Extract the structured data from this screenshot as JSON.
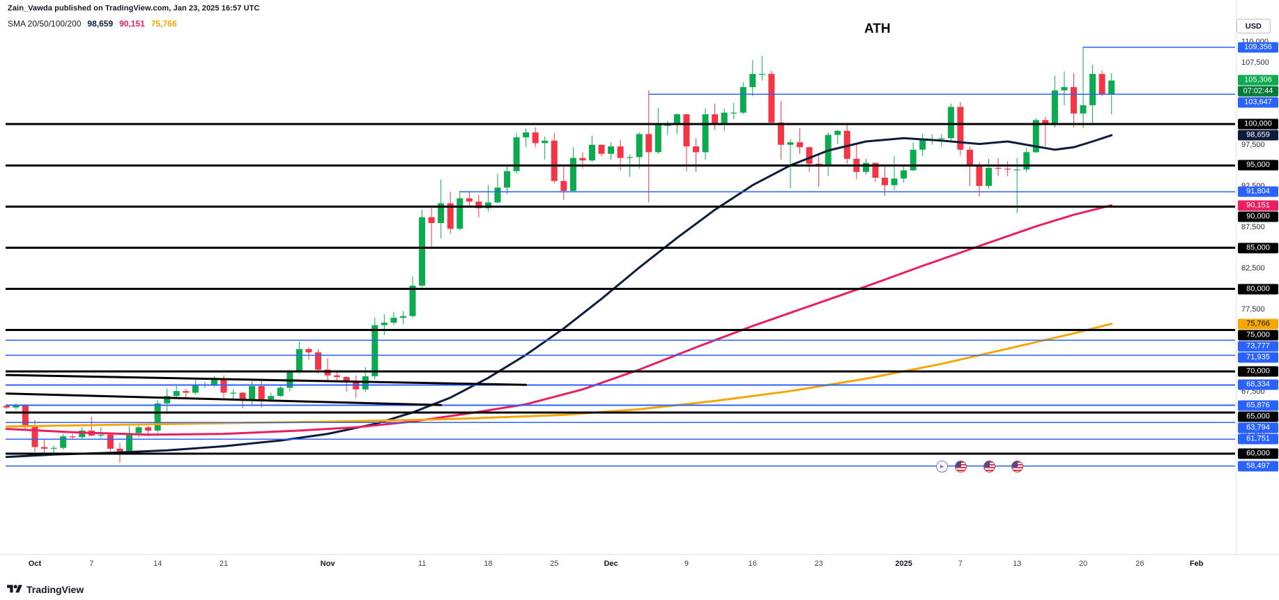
{
  "header": {
    "attribution": "Zain_Vawda published on TradingView.com, Jan 23, 2025 16:57 UTC",
    "legend_label": "SMA 20/50/100/200",
    "legend_values": [
      {
        "text": "98,659",
        "color": "#0d1b3c"
      },
      {
        "text": "90,151",
        "color": "#e91e63"
      },
      {
        "text": "75,766",
        "color": "#f7a600"
      }
    ],
    "currency_button": "USD"
  },
  "annotation_ath": "ATH",
  "footer_brand": "TradingView",
  "colors": {
    "up": "#0cab50",
    "down": "#f23645",
    "level_black": "#000000",
    "level_blue": "#2962ff",
    "badge_black": "#000000",
    "badge_navy": "#0d1b3c",
    "badge_pink": "#e91e63",
    "badge_orange": "#f7a600",
    "badge_current_bg": "#0cab50",
    "badge_countdown_bg": "#077a38",
    "axis_text": "#131722"
  },
  "axis": {
    "x_ticks": [
      {
        "label": "Oct",
        "day": 0,
        "major": true
      },
      {
        "label": "7",
        "day": 6
      },
      {
        "label": "14",
        "day": 13
      },
      {
        "label": "21",
        "day": 20
      },
      {
        "label": "Nov",
        "day": 31,
        "major": true
      },
      {
        "label": "11",
        "day": 41
      },
      {
        "label": "18",
        "day": 48
      },
      {
        "label": "25",
        "day": 55
      },
      {
        "label": "Dec",
        "day": 61,
        "major": true
      },
      {
        "label": "9",
        "day": 69
      },
      {
        "label": "16",
        "day": 76
      },
      {
        "label": "23",
        "day": 83
      },
      {
        "label": "2025",
        "day": 92,
        "major": true
      },
      {
        "label": "7",
        "day": 98
      },
      {
        "label": "13",
        "day": 104
      },
      {
        "label": "20",
        "day": 111
      },
      {
        "label": "26",
        "day": 117
      },
      {
        "label": "Feb",
        "day": 123,
        "major": true
      }
    ],
    "y_ticks": [
      {
        "label": "110,000",
        "price": 110
      },
      {
        "label": "107,500",
        "price": 107.5
      },
      {
        "label": "97,500",
        "price": 97.5
      },
      {
        "label": "92,500",
        "price": 92.5
      },
      {
        "label": "87,500",
        "price": 87.5
      },
      {
        "label": "82,500",
        "price": 82.5
      },
      {
        "label": "77,500",
        "price": 77.5
      },
      {
        "label": "67,500",
        "price": 67.5
      },
      {
        "label": "62,500",
        "price": 62.5
      }
    ],
    "price_badges": [
      {
        "text": "109,356",
        "price": 109.356,
        "style": "blue"
      },
      {
        "text": "105,306",
        "price": 105.306,
        "style": "current"
      },
      {
        "text": "07:02:44",
        "style": "countdown"
      },
      {
        "text": "103,647",
        "price": 103.647,
        "style": "blue"
      },
      {
        "text": "100,000",
        "price": 100,
        "style": "black"
      },
      {
        "text": "98,659",
        "price": 98.659,
        "style": "navy"
      },
      {
        "text": "95,000",
        "price": 95,
        "style": "black"
      },
      {
        "text": "91,804",
        "price": 91.804,
        "style": "blue"
      },
      {
        "text": "90,151",
        "price": 90.151,
        "style": "pink"
      },
      {
        "text": "90,000",
        "price": 90,
        "style": "black"
      },
      {
        "text": "85,000",
        "price": 85,
        "style": "black"
      },
      {
        "text": "80,000",
        "price": 80,
        "style": "black"
      },
      {
        "text": "75,766",
        "price": 75.766,
        "style": "orange"
      },
      {
        "text": "75,000",
        "price": 75,
        "style": "black"
      },
      {
        "text": "73,777",
        "price": 73.777,
        "style": "blue"
      },
      {
        "text": "71,935",
        "price": 71.935,
        "style": "blue"
      },
      {
        "text": "70,000",
        "price": 70,
        "style": "black"
      },
      {
        "text": "68,334",
        "price": 68.334,
        "style": "blue"
      },
      {
        "text": "65,876",
        "price": 65.876,
        "style": "blue"
      },
      {
        "text": "65,000",
        "price": 65,
        "style": "black"
      },
      {
        "text": "63,794",
        "price": 63.794,
        "style": "blue"
      },
      {
        "text": "61,751",
        "price": 61.751,
        "style": "blue"
      },
      {
        "text": "60,000",
        "price": 60,
        "style": "black"
      },
      {
        "text": "58,497",
        "price": 58.497,
        "style": "blue"
      }
    ]
  },
  "chart_data": {
    "type": "candlestick",
    "price_unit": "USD, values in thousands",
    "visible_price_range_thousands": [
      48,
      112.5
    ],
    "current_price": 105.306,
    "bar_close_countdown": "07:02:44",
    "annotations": [
      "ATH"
    ],
    "start_day_offset": -3,
    "x_unit": "days relative to Oct tick",
    "candles_ohlc": [
      [
        65.8,
        66.0,
        65.4,
        65.6
      ],
      [
        65.6,
        66.1,
        65.3,
        65.9
      ],
      [
        65.9,
        66.0,
        63.0,
        63.3
      ],
      [
        63.3,
        64.1,
        60.2,
        60.8
      ],
      [
        60.8,
        61.8,
        60.0,
        60.6
      ],
      [
        60.6,
        61.0,
        59.8,
        60.7
      ],
      [
        60.7,
        62.4,
        60.5,
        62.1
      ],
      [
        62.1,
        62.4,
        61.7,
        62.0
      ],
      [
        62.0,
        63.2,
        61.8,
        62.8
      ],
      [
        62.8,
        64.5,
        62.1,
        62.2
      ],
      [
        62.2,
        63.2,
        61.9,
        62.3
      ],
      [
        62.3,
        62.5,
        60.3,
        60.6
      ],
      [
        60.6,
        61.3,
        58.9,
        60.3
      ],
      [
        60.3,
        63.4,
        60.1,
        62.5
      ],
      [
        62.5,
        63.4,
        62.0,
        63.2
      ],
      [
        63.2,
        63.3,
        62.1,
        62.8
      ],
      [
        62.8,
        66.5,
        62.5,
        66.1
      ],
      [
        66.1,
        67.9,
        64.8,
        67.0
      ],
      [
        67.0,
        68.4,
        66.7,
        67.6
      ],
      [
        67.6,
        67.9,
        66.7,
        67.4
      ],
      [
        67.4,
        69.0,
        67.2,
        68.4
      ],
      [
        68.4,
        68.7,
        68.0,
        68.4
      ],
      [
        68.4,
        69.4,
        68.1,
        69.0
      ],
      [
        69.0,
        69.5,
        66.8,
        67.4
      ],
      [
        67.4,
        67.8,
        66.6,
        67.4
      ],
      [
        67.4,
        67.5,
        65.5,
        66.4
      ],
      [
        66.4,
        68.8,
        66.0,
        68.2
      ],
      [
        68.2,
        68.8,
        65.6,
        66.6
      ],
      [
        66.6,
        67.4,
        66.3,
        67.0
      ],
      [
        67.0,
        68.3,
        66.9,
        68.0
      ],
      [
        68.0,
        70.2,
        67.6,
        69.9
      ],
      [
        69.9,
        73.6,
        69.7,
        72.7
      ],
      [
        72.7,
        72.9,
        71.4,
        72.3
      ],
      [
        72.3,
        72.7,
        69.7,
        70.2
      ],
      [
        70.2,
        71.6,
        68.8,
        69.5
      ],
      [
        69.5,
        69.9,
        68.7,
        69.3
      ],
      [
        69.3,
        69.4,
        67.5,
        68.7
      ],
      [
        68.7,
        69.5,
        66.8,
        67.8
      ],
      [
        67.8,
        70.5,
        67.5,
        69.4
      ],
      [
        69.4,
        76.5,
        69.0,
        75.6
      ],
      [
        75.6,
        76.9,
        74.4,
        75.9
      ],
      [
        75.9,
        77.2,
        75.6,
        76.5
      ],
      [
        76.5,
        77.3,
        75.7,
        76.7
      ],
      [
        76.7,
        81.5,
        76.5,
        80.4
      ],
      [
        80.4,
        89.6,
        80.2,
        88.7
      ],
      [
        88.7,
        90.0,
        85.1,
        88.0
      ],
      [
        88.0,
        93.3,
        86.1,
        90.4
      ],
      [
        90.4,
        91.8,
        86.7,
        87.3
      ],
      [
        87.3,
        91.9,
        87.1,
        91.0
      ],
      [
        91.0,
        91.8,
        90.0,
        90.6
      ],
      [
        90.6,
        91.4,
        88.7,
        89.8
      ],
      [
        89.8,
        92.6,
        89.4,
        90.5
      ],
      [
        90.5,
        94.0,
        90.4,
        92.3
      ],
      [
        92.3,
        94.9,
        91.5,
        94.3
      ],
      [
        94.3,
        98.9,
        94.0,
        98.4
      ],
      [
        98.4,
        99.5,
        97.2,
        99.0
      ],
      [
        99.0,
        99.6,
        97.2,
        97.7
      ],
      [
        97.7,
        98.5,
        95.7,
        98.0
      ],
      [
        98.0,
        98.9,
        92.8,
        93.1
      ],
      [
        93.1,
        94.9,
        90.8,
        91.9
      ],
      [
        91.9,
        97.2,
        91.8,
        95.9
      ],
      [
        95.9,
        96.6,
        94.6,
        95.6
      ],
      [
        95.6,
        98.6,
        95.4,
        97.5
      ],
      [
        97.5,
        97.5,
        96.1,
        96.4
      ],
      [
        96.4,
        97.8,
        95.7,
        97.3
      ],
      [
        97.3,
        98.1,
        94.4,
        95.9
      ],
      [
        95.9,
        96.3,
        93.6,
        96.0
      ],
      [
        96.0,
        99.0,
        94.6,
        98.8
      ],
      [
        98.8,
        104.1,
        90.5,
        96.6
      ],
      [
        96.6,
        102.0,
        96.4,
        99.9
      ],
      [
        99.9,
        100.4,
        98.7,
        99.9
      ],
      [
        99.9,
        101.3,
        98.8,
        101.2
      ],
      [
        101.2,
        101.3,
        94.3,
        97.3
      ],
      [
        97.3,
        98.3,
        94.2,
        96.6
      ],
      [
        96.6,
        101.9,
        95.7,
        101.2
      ],
      [
        101.2,
        102.5,
        99.3,
        100.0
      ],
      [
        100.0,
        101.9,
        99.2,
        101.4
      ],
      [
        101.4,
        102.6,
        100.6,
        101.4
      ],
      [
        101.4,
        105.1,
        101.2,
        104.5
      ],
      [
        104.5,
        107.8,
        103.4,
        106.1
      ],
      [
        106.1,
        108.3,
        105.3,
        106.1
      ],
      [
        106.1,
        106.5,
        100.0,
        100.2
      ],
      [
        100.2,
        102.8,
        95.7,
        97.5
      ],
      [
        97.5,
        98.2,
        92.2,
        97.8
      ],
      [
        97.8,
        99.5,
        96.4,
        97.2
      ],
      [
        97.2,
        97.3,
        94.2,
        95.2
      ],
      [
        95.2,
        96.4,
        92.4,
        94.9
      ],
      [
        94.9,
        99.0,
        93.7,
        98.7
      ],
      [
        98.7,
        99.3,
        97.6,
        99.2
      ],
      [
        99.2,
        99.9,
        95.2,
        95.8
      ],
      [
        95.8,
        97.5,
        93.3,
        94.2
      ],
      [
        94.2,
        95.8,
        93.9,
        95.3
      ],
      [
        95.3,
        95.3,
        93.0,
        93.5
      ],
      [
        93.5,
        95.0,
        91.3,
        92.6
      ],
      [
        92.6,
        96.1,
        92.0,
        93.4
      ],
      [
        93.4,
        95.1,
        92.9,
        94.4
      ],
      [
        94.4,
        97.8,
        94.3,
        96.9
      ],
      [
        96.9,
        98.8,
        96.1,
        98.1
      ],
      [
        98.1,
        98.8,
        97.5,
        98.2
      ],
      [
        98.2,
        98.8,
        97.3,
        98.3
      ],
      [
        98.3,
        102.5,
        97.9,
        102.1
      ],
      [
        102.1,
        102.7,
        96.2,
        96.9
      ],
      [
        96.9,
        97.3,
        92.5,
        95.0
      ],
      [
        95.0,
        95.4,
        91.2,
        92.5
      ],
      [
        92.5,
        95.8,
        92.2,
        94.7
      ],
      [
        94.7,
        95.9,
        93.7,
        94.6
      ],
      [
        94.6,
        95.5,
        93.7,
        94.5
      ],
      [
        94.5,
        95.9,
        89.2,
        94.5
      ],
      [
        94.5,
        97.1,
        94.2,
        96.6
      ],
      [
        96.6,
        100.7,
        96.5,
        100.5
      ],
      [
        100.5,
        100.9,
        97.3,
        100.0
      ],
      [
        100.0,
        105.9,
        99.6,
        104.1
      ],
      [
        104.1,
        106.4,
        102.3,
        104.5
      ],
      [
        104.5,
        106.2,
        99.6,
        101.3
      ],
      [
        101.3,
        109.4,
        99.5,
        102.3
      ],
      [
        102.3,
        107.2,
        100.1,
        106.1
      ],
      [
        106.1,
        106.5,
        103.4,
        103.7
      ],
      [
        103.7,
        106.2,
        101.2,
        105.3
      ]
    ],
    "sma_series": [
      {
        "name": "sma-navy",
        "legend_value": 98.659,
        "color": "#0d1b3c",
        "points": [
          [
            -3,
            59.6
          ],
          [
            2,
            59.9
          ],
          [
            8,
            60.1
          ],
          [
            14,
            60.4
          ],
          [
            20,
            60.9
          ],
          [
            26,
            61.6
          ],
          [
            31,
            62.4
          ],
          [
            36,
            63.6
          ],
          [
            40,
            65.0
          ],
          [
            44,
            66.8
          ],
          [
            48,
            69.2
          ],
          [
            52,
            72.0
          ],
          [
            56,
            75.2
          ],
          [
            60,
            78.8
          ],
          [
            64,
            82.6
          ],
          [
            68,
            86.2
          ],
          [
            72,
            89.6
          ],
          [
            76,
            92.6
          ],
          [
            80,
            95.0
          ],
          [
            84,
            96.8
          ],
          [
            88,
            97.9
          ],
          [
            92,
            98.3
          ],
          [
            96,
            98.0
          ],
          [
            100,
            97.6
          ],
          [
            103,
            97.9
          ],
          [
            106,
            97.3
          ],
          [
            108,
            96.9
          ],
          [
            110,
            97.2
          ],
          [
            112,
            97.9
          ],
          [
            114,
            98.659
          ]
        ]
      },
      {
        "name": "sma-pink",
        "legend_value": 90.151,
        "color": "#e91e63",
        "points": [
          [
            -3,
            63.0
          ],
          [
            4,
            62.6
          ],
          [
            12,
            62.3
          ],
          [
            20,
            62.4
          ],
          [
            28,
            62.8
          ],
          [
            34,
            63.2
          ],
          [
            40,
            63.9
          ],
          [
            46,
            64.9
          ],
          [
            52,
            66.0
          ],
          [
            58,
            67.8
          ],
          [
            64,
            70.2
          ],
          [
            70,
            72.9
          ],
          [
            76,
            75.5
          ],
          [
            82,
            77.9
          ],
          [
            88,
            80.3
          ],
          [
            94,
            82.8
          ],
          [
            100,
            85.2
          ],
          [
            106,
            87.6
          ],
          [
            110,
            89.0
          ],
          [
            114,
            90.151
          ]
        ]
      },
      {
        "name": "sma-orange",
        "legend_value": 75.766,
        "color": "#f7a600",
        "points": [
          [
            -3,
            63.3
          ],
          [
            8,
            63.5
          ],
          [
            20,
            63.7
          ],
          [
            32,
            63.9
          ],
          [
            44,
            64.2
          ],
          [
            56,
            64.7
          ],
          [
            64,
            65.4
          ],
          [
            72,
            66.4
          ],
          [
            80,
            67.6
          ],
          [
            88,
            69.1
          ],
          [
            96,
            70.9
          ],
          [
            104,
            73.0
          ],
          [
            110,
            74.6
          ],
          [
            114,
            75.766
          ]
        ]
      }
    ],
    "horizontal_levels_black": [
      100,
      95,
      90,
      85,
      80,
      75,
      70,
      65,
      60
    ],
    "horizontal_levels_blue": [
      {
        "price": 109.356,
        "start_day": 111
      },
      {
        "price": 103.647,
        "start_day": 65
      },
      {
        "price": 91.804,
        "start_day": 45
      },
      {
        "price": 73.777,
        "start_day": null
      },
      {
        "price": 71.935,
        "start_day": null
      },
      {
        "price": 68.334,
        "start_day": null
      },
      {
        "price": 65.876,
        "start_day": null
      },
      {
        "price": 63.794,
        "start_day": null
      },
      {
        "price": 61.751,
        "start_day": null
      },
      {
        "price": 58.497,
        "start_day": null
      }
    ],
    "trendlines": [
      {
        "from_day": -3,
        "from_price": 69.55,
        "to_day": 52,
        "to_price": 68.35
      },
      {
        "from_day": -3,
        "from_price": 67.3,
        "to_day": 43,
        "to_price": 65.9
      }
    ]
  },
  "event_markers": [
    {
      "day": 96,
      "type": "arrow"
    },
    {
      "day": 98,
      "type": "flag"
    },
    {
      "day": 101,
      "type": "flag"
    },
    {
      "day": 104,
      "type": "flag"
    }
  ]
}
